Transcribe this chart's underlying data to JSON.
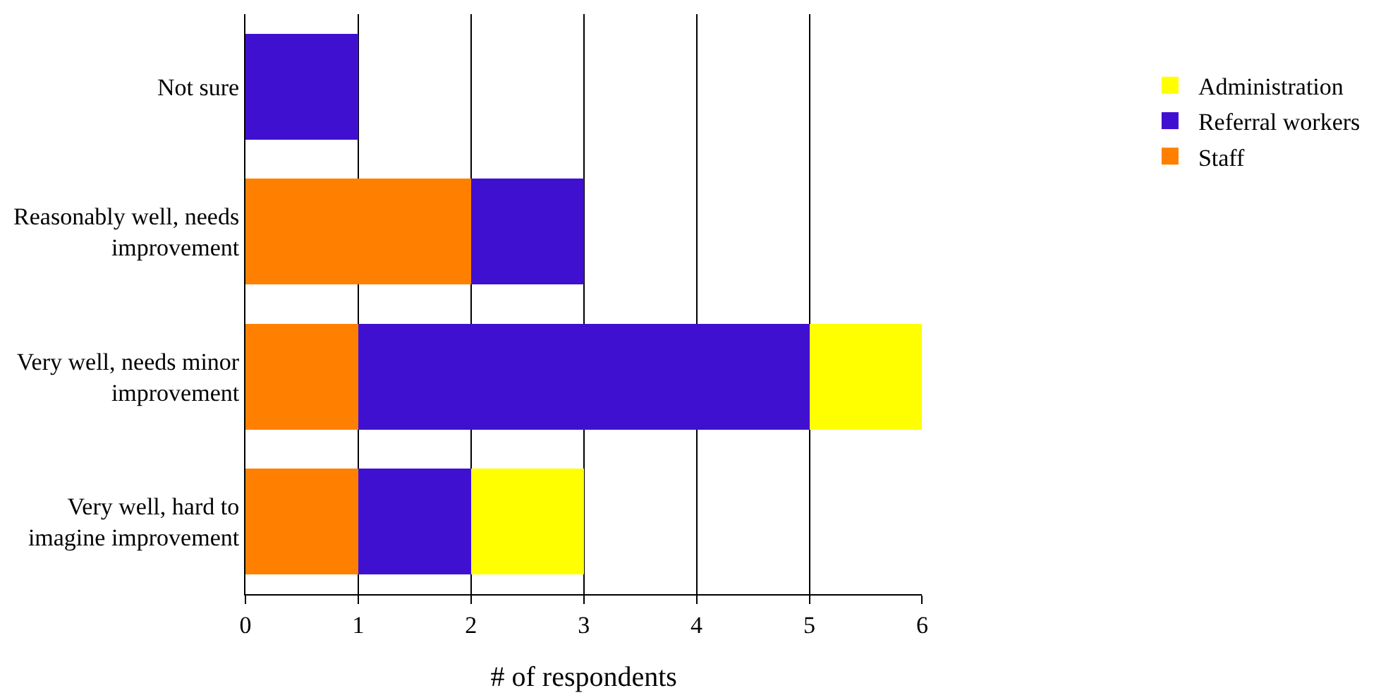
{
  "chart_data": {
    "type": "bar",
    "orientation": "horizontal",
    "stacked": true,
    "categories": [
      "Not sure",
      "Reasonably well, needs improvement",
      "Very well, needs minor improvement",
      "Very well, hard to imagine improvement"
    ],
    "series": [
      {
        "name": "Staff",
        "color": "#ff8000",
        "values": [
          0,
          2,
          1,
          1
        ]
      },
      {
        "name": "Referral workers",
        "color": "#4010d0",
        "values": [
          1,
          1,
          4,
          1
        ]
      },
      {
        "name": "Administration",
        "color": "#ffff00",
        "values": [
          0,
          0,
          1,
          1
        ]
      }
    ],
    "xlabel": "# of respondents",
    "xlim": [
      0,
      6
    ],
    "xticks": [
      0,
      1,
      2,
      3,
      4,
      5,
      6
    ],
    "grid": "x",
    "legend": "right"
  }
}
